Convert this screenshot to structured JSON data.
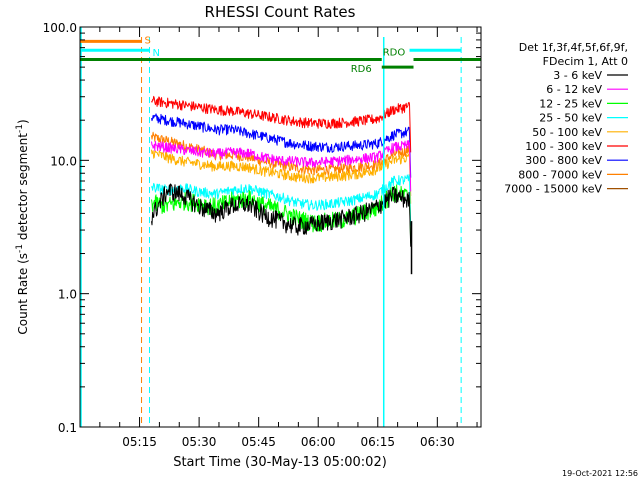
{
  "chart_data": {
    "type": "line",
    "title": "RHESSI Count Rates",
    "xlabel": "Start Time (30-May-13 05:00:02)",
    "ylabel": "Count Rate (s",
    "ylabel_sup1": "-1",
    "ylabel_mid": " detector segment",
    "ylabel_sup2": "-1",
    "ylabel_end": ")",
    "yscale": "log",
    "ylim": [
      0.1,
      100.0
    ],
    "xlim_minutes": [
      0,
      101
    ],
    "x_ticks": [
      {
        "minute": 15,
        "label": "05:15"
      },
      {
        "minute": 30,
        "label": "05:30"
      },
      {
        "minute": 45,
        "label": "05:45"
      },
      {
        "minute": 60,
        "label": "06:00"
      },
      {
        "minute": 75,
        "label": "06:15"
      },
      {
        "minute": 90,
        "label": "06:30"
      }
    ],
    "y_ticks": [
      {
        "value": 0.1,
        "label": "0.1"
      },
      {
        "value": 1.0,
        "label": "1.0"
      },
      {
        "value": 10.0,
        "label": "10.0"
      },
      {
        "value": 100.0,
        "label": "100.0"
      }
    ],
    "legend_header": [
      "Det 1f,3f,4f,5f,6f,9f,",
      "FDecim 1, Att 0"
    ],
    "data_start_minute": 18,
    "data_end_minute": 83,
    "series": [
      {
        "name": "3 - 6 keV",
        "color": "#000000",
        "values": [
          3.8,
          6.0,
          5.5,
          4.5,
          4.0,
          4.6,
          4.7,
          3.9,
          3.5,
          3.2,
          3.3,
          3.5,
          3.7,
          4.0,
          4.5,
          5.5,
          5.0
        ]
      },
      {
        "name": "6 - 12 keV",
        "color": "#ff00ff",
        "values": [
          13.0,
          12.5,
          12.0,
          11.5,
          11.2,
          11.5,
          11.3,
          10.5,
          10.0,
          9.8,
          9.6,
          9.8,
          10.0,
          10.3,
          10.6,
          12.5,
          13.0
        ]
      },
      {
        "name": "12 - 25 keV",
        "color": "#00ff00",
        "values": [
          4.8,
          4.6,
          5.0,
          4.8,
          4.5,
          5.0,
          5.2,
          4.6,
          4.2,
          3.7,
          3.4,
          3.5,
          3.6,
          4.0,
          4.4,
          5.8,
          5.3
        ]
      },
      {
        "name": "25 - 50 keV",
        "color": "#00ffff",
        "values": [
          6.3,
          6.0,
          6.2,
          5.8,
          5.6,
          6.0,
          6.2,
          5.7,
          5.3,
          4.8,
          4.6,
          4.7,
          4.9,
          5.2,
          5.6,
          7.0,
          7.2
        ]
      },
      {
        "name": "50 - 100 keV",
        "color": "#ffb000",
        "values": [
          11.5,
          10.5,
          9.8,
          9.4,
          9.0,
          9.1,
          8.9,
          8.3,
          7.9,
          7.5,
          7.4,
          7.5,
          7.7,
          8.0,
          8.6,
          10.0,
          10.5
        ]
      },
      {
        "name": "100 - 300 keV",
        "color": "#ff0000",
        "values": [
          28.0,
          27.0,
          26.0,
          25.0,
          24.0,
          23.5,
          22.5,
          21.5,
          20.5,
          19.5,
          19.0,
          19.0,
          19.3,
          19.8,
          20.5,
          24.0,
          25.5
        ]
      },
      {
        "name": "300 - 800 keV",
        "color": "#0000ff",
        "values": [
          21.0,
          20.0,
          19.0,
          18.0,
          17.0,
          17.0,
          16.0,
          15.0,
          14.0,
          13.2,
          12.8,
          12.6,
          12.8,
          13.0,
          13.4,
          15.5,
          16.5
        ]
      },
      {
        "name": "800 - 7000 keV",
        "color": "#ff8000",
        "values": [
          15.0,
          14.0,
          13.0,
          12.0,
          11.0,
          11.0,
          10.6,
          9.8,
          9.2,
          8.8,
          8.5,
          8.5,
          8.7,
          9.0,
          9.3,
          11.0,
          12.0
        ]
      },
      {
        "name": "7000 - 15000 keV",
        "color": "#a05000",
        "values": []
      }
    ],
    "markers": {
      "S": {
        "label": "S",
        "color": "#ff8000",
        "minute_start": 0,
        "minute_end": 15.5,
        "value": 78,
        "vline_minute": 15.5
      },
      "N": {
        "label": "N",
        "color": "#00ffff",
        "minute_start": 0,
        "minute_end": 17.5,
        "value": 67,
        "vline_minute": 17.5
      },
      "RD6": {
        "label": "RD6",
        "color": "#008000",
        "minute_start": 0,
        "minute_end": 76,
        "value": 57
      },
      "RDO_left": {
        "label": "",
        "color": "#008000",
        "minute_start": 76,
        "minute_end": 84,
        "value": 50
      },
      "RDO": {
        "label": "RDO",
        "color": "#008000",
        "minute_start": 84,
        "minute_end": 101,
        "value": 57
      },
      "cyan_top_right": {
        "label": "",
        "color": "#00ffff",
        "minute_start": 83,
        "minute_end": 96,
        "value": 67
      },
      "cyan_vlines": {
        "color": "#00ffff",
        "solid_minutes": [
          76.5
        ],
        "dashed_minutes": [
          96
        ]
      }
    },
    "post_drop": {
      "minute": 83.5,
      "values": [
        3.5,
        1.4
      ]
    }
  },
  "footer": {
    "timestamp": "19-Oct-2021 12:56"
  }
}
